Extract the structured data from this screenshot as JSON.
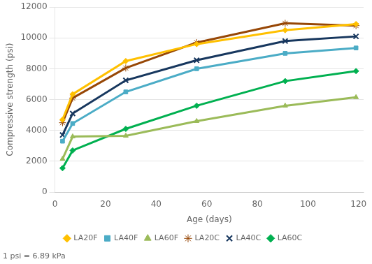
{
  "chart_data": {
    "type": "line",
    "xlabel": "Age (days)",
    "ylabel": "Compressive strength (psi)",
    "annotations": [
      "1 psi = 6.89 kPa"
    ],
    "x": [
      3,
      7,
      28,
      56,
      91,
      119
    ],
    "series": [
      {
        "name": "LA20F",
        "color": "#FFC000",
        "marker": "diamond",
        "values": [
          4700,
          6350,
          8500,
          9600,
          10500,
          10900
        ]
      },
      {
        "name": "LA40F",
        "color": "#4BACC6",
        "marker": "square",
        "values": [
          3300,
          4450,
          6500,
          8000,
          9000,
          9350
        ]
      },
      {
        "name": "LA60F",
        "color": "#9BBB59",
        "marker": "triangle",
        "values": [
          2150,
          3600,
          3650,
          4600,
          5600,
          6150
        ]
      },
      {
        "name": "LA20C",
        "color": "#974706",
        "marker": "star",
        "values": [
          4500,
          6100,
          8050,
          9700,
          10950,
          10800
        ]
      },
      {
        "name": "LA40C",
        "color": "#17375E",
        "marker": "x",
        "values": [
          3700,
          5100,
          7250,
          8550,
          9800,
          10100
        ]
      },
      {
        "name": "LA60C",
        "color": "#00B050",
        "marker": "diamond",
        "values": [
          1550,
          2700,
          4100,
          5600,
          7200,
          7850
        ]
      }
    ],
    "xlim": [
      0,
      122
    ],
    "ylim": [
      0,
      12000
    ],
    "xticks": [
      0,
      20,
      40,
      60,
      80,
      100,
      120
    ],
    "yticks": [
      0,
      2000,
      4000,
      6000,
      8000,
      10000,
      12000
    ],
    "grid": "y",
    "legend": "bottom"
  }
}
